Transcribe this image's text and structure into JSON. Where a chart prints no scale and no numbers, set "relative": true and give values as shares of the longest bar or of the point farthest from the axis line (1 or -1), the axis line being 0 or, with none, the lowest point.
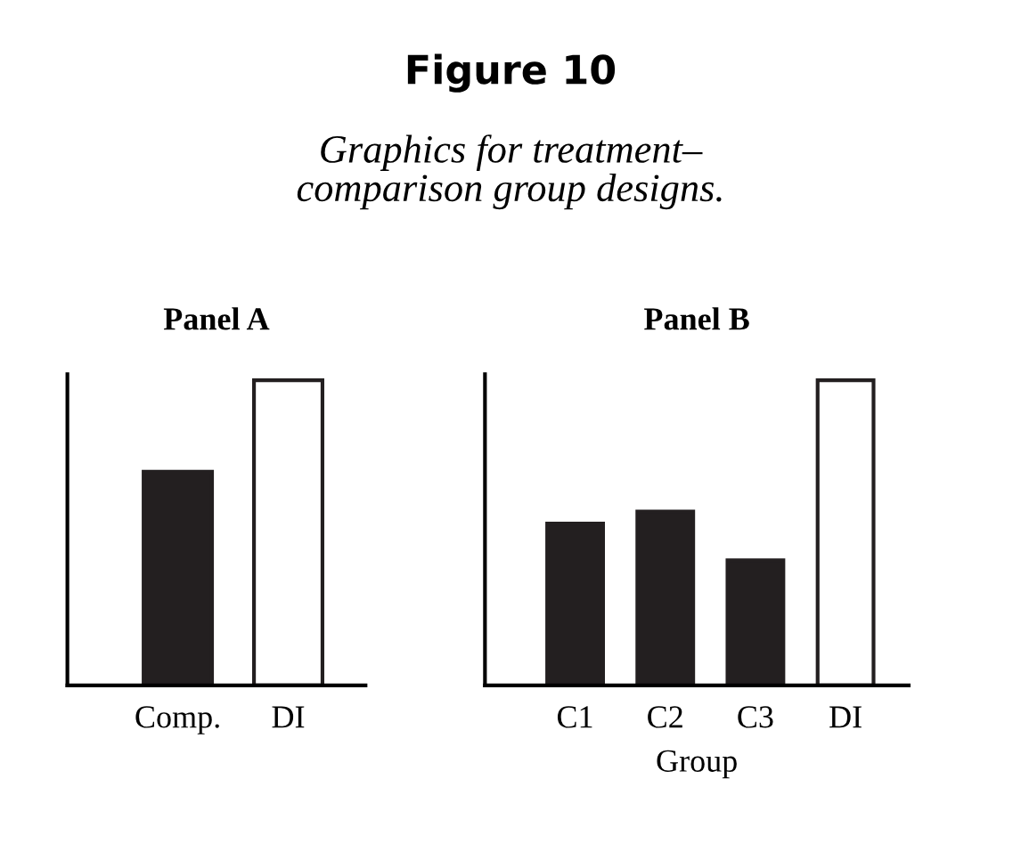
{
  "chart_data": [
    {
      "type": "bar",
      "relative": true,
      "title": "Panel A",
      "annotations": [
        "Figure 10",
        "Graphics for treatment–\ncomparison group designs."
      ],
      "categories": [
        "Comp.",
        "DI"
      ],
      "values": [
        0.7,
        1
      ],
      "colors": [
        "#231f20",
        "#ffffff"
      ]
    },
    {
      "type": "bar",
      "relative": true,
      "title": "Panel B",
      "xlabel": "Group",
      "categories": [
        "C1",
        "C2",
        "C3",
        "DI"
      ],
      "values": [
        0.53,
        0.57,
        0.41,
        1
      ],
      "colors": [
        "#231f20",
        "#231f20",
        "#231f20",
        "#ffffff"
      ]
    }
  ]
}
